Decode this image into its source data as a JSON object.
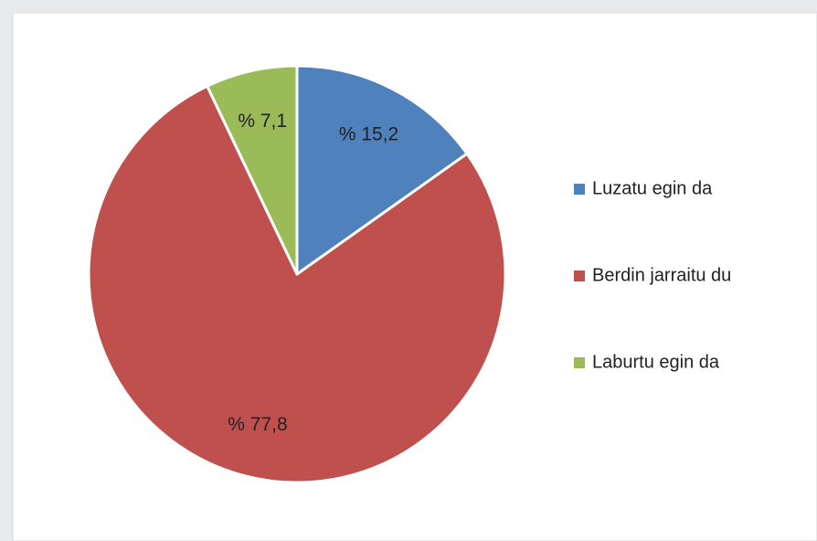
{
  "chart_data": {
    "type": "pie",
    "categories": [
      "Luzatu egin da",
      "Berdin jarraitu du",
      "Laburtu egin da"
    ],
    "values": [
      15.2,
      77.8,
      7.1
    ],
    "value_labels": [
      "% 15,2",
      "% 77,8",
      "% 7,1"
    ],
    "colors": [
      "#4f81bd",
      "#c0504d",
      "#9bbb59"
    ],
    "legend": "right"
  }
}
